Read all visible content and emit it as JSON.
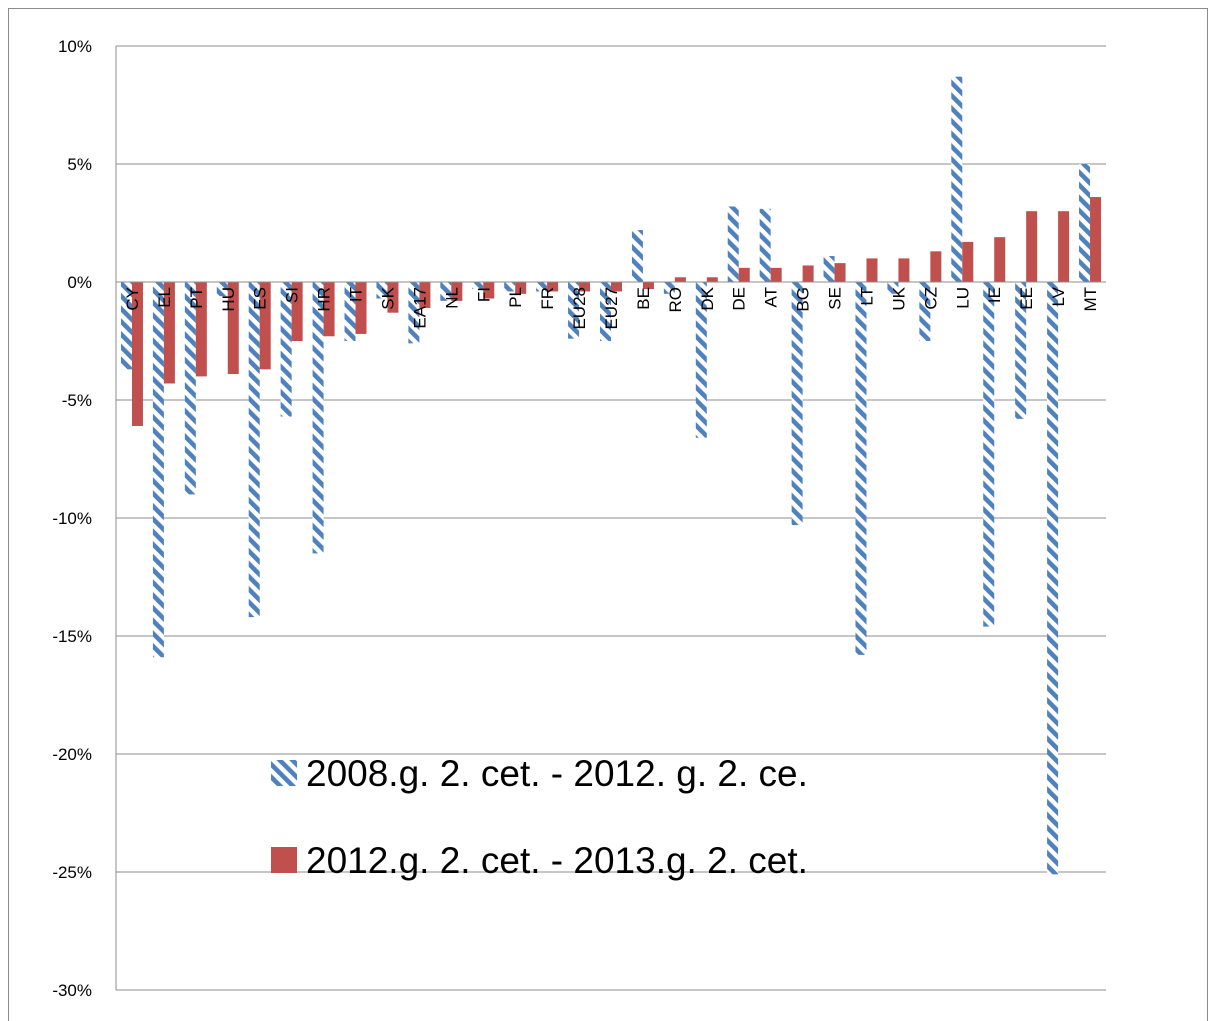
{
  "chart_data": {
    "type": "bar",
    "title": "",
    "xlabel": "",
    "ylabel": "",
    "ylim": [
      -30,
      10
    ],
    "y_ticks": [
      10,
      5,
      0,
      -5,
      -10,
      -15,
      -20,
      -25,
      -30
    ],
    "y_tick_labels": [
      "10%",
      "5%",
      "0%",
      "-5%",
      "-10%",
      "-15%",
      "-20%",
      "-25%",
      "-30%"
    ],
    "grid": true,
    "legend_position": "inside-bottom-center",
    "categories": [
      "CY",
      "EL",
      "PT",
      "HU",
      "ES",
      "SI",
      "HR",
      "IT",
      "SK",
      "EA17",
      "NL",
      "FI",
      "PL",
      "FR",
      "EU28",
      "EU27",
      "BE",
      "RO",
      "DK",
      "DE",
      "AT",
      "BG",
      "SE",
      "LT",
      "UK",
      "CZ",
      "LU",
      "IE",
      "EE",
      "LV",
      "MT"
    ],
    "series": [
      {
        "name": "2008.g. 2. cet. - 2012. g. 2. ce.",
        "color": "#4f81bd",
        "pattern": "diagonal-stripes",
        "values": [
          -3.7,
          -15.9,
          -9.0,
          -0.6,
          -14.2,
          -5.7,
          -11.5,
          -2.5,
          -0.7,
          -2.6,
          -0.8,
          -0.3,
          -0.4,
          -0.4,
          -2.4,
          -2.5,
          2.2,
          -0.5,
          -6.6,
          3.2,
          3.1,
          -10.3,
          1.1,
          -15.8,
          -0.5,
          -2.5,
          8.7,
          -14.6,
          -5.8,
          -25.1,
          5.0
        ]
      },
      {
        "name": "2012.g. 2. cet. - 2013.g. 2. cet.",
        "color": "#c0504d",
        "pattern": "solid",
        "values": [
          -6.1,
          -4.3,
          -4.0,
          -3.9,
          -3.7,
          -2.5,
          -2.3,
          -2.2,
          -1.3,
          -1.1,
          -0.8,
          -0.7,
          -0.5,
          -0.4,
          -0.4,
          -0.4,
          -0.3,
          0.2,
          0.2,
          0.6,
          0.6,
          0.7,
          0.8,
          1.0,
          1.0,
          1.3,
          1.7,
          1.9,
          3.0,
          3.0,
          3.6
        ]
      }
    ]
  }
}
